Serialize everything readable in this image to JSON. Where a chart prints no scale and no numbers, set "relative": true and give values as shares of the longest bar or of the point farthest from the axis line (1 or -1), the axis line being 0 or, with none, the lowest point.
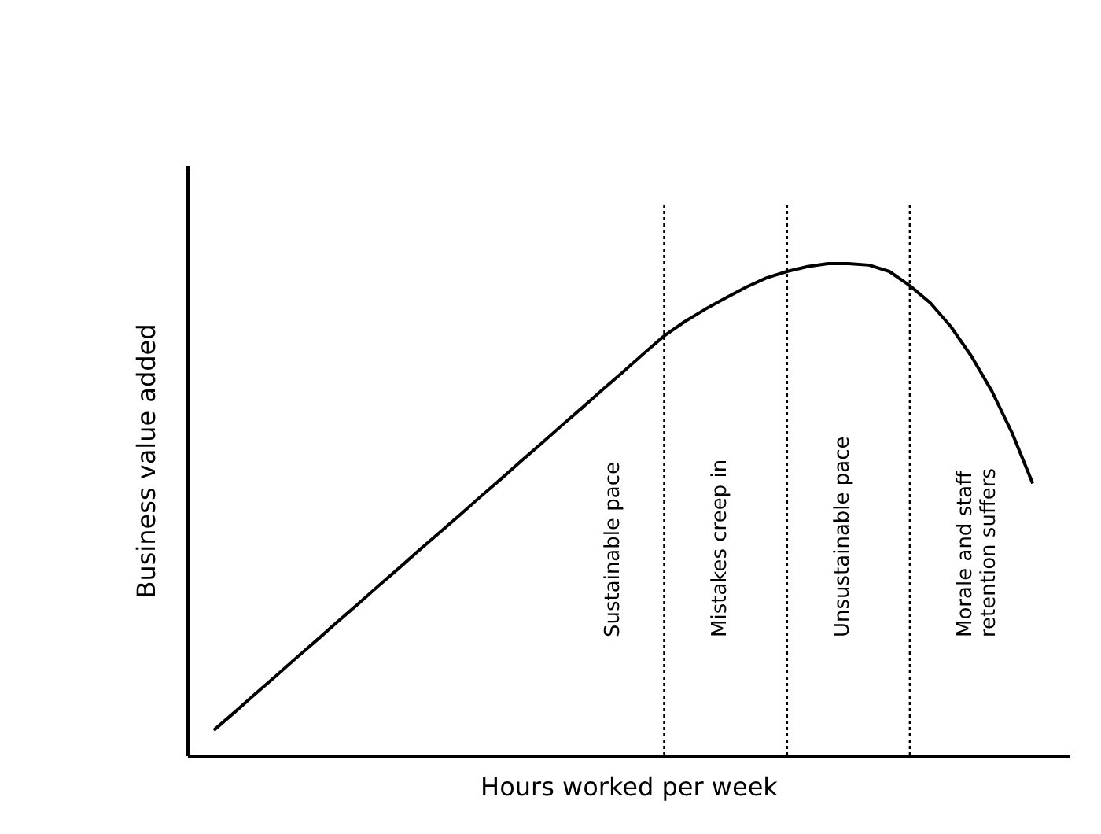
{
  "chart_data": {
    "type": "line",
    "relative": true,
    "xlabel": "Hours worked per week",
    "ylabel": "Business value added",
    "categories": [
      null,
      null,
      null,
      null,
      null,
      null,
      null,
      null,
      null,
      null,
      null,
      null,
      null,
      null,
      null,
      null,
      null,
      null,
      null,
      null,
      null,
      null,
      null,
      null,
      null,
      null,
      null,
      null,
      null,
      null,
      null,
      null,
      null,
      null,
      null,
      null,
      null,
      null,
      null,
      null,
      null
    ],
    "grid": "x",
    "marker": "none",
    "line_style": "solid",
    "series": [
      {
        "color": "#000000",
        "values": [
          0.051,
          0.087,
          0.124,
          0.16,
          0.197,
          0.233,
          0.27,
          0.306,
          0.343,
          0.379,
          0.416,
          0.452,
          0.488,
          0.525,
          0.561,
          0.598,
          0.634,
          0.671,
          0.707,
          0.744,
          0.78,
          0.817,
          0.853,
          0.882,
          0.907,
          0.93,
          0.952,
          0.971,
          0.984,
          0.994,
          1.0,
          1.0,
          0.997,
          0.984,
          0.955,
          0.92,
          0.872,
          0.812,
          0.741,
          0.655,
          0.553
        ]
      }
    ],
    "annotations": [
      "Sustainable pace",
      "Mistakes creep in",
      "Unsustainable pace",
      "Morale and staff\nretention suffers"
    ]
  }
}
